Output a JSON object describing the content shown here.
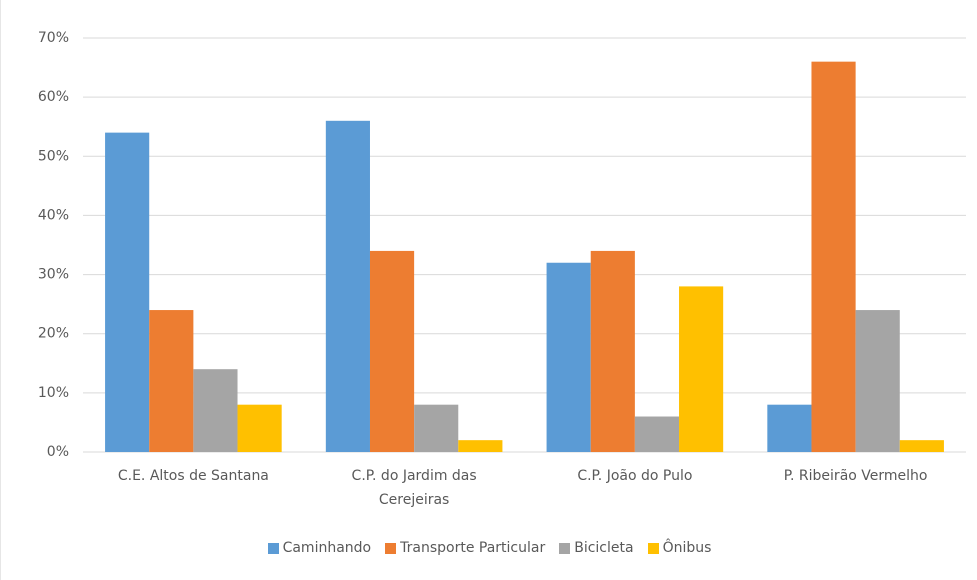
{
  "chart_data": {
    "type": "bar",
    "categories": [
      "C.E. Altos de Santana",
      "C.P. do Jardim das Cerejeiras",
      "C.P. João do Pulo",
      "P. Ribeirão Vermelho"
    ],
    "series": [
      {
        "name": "Caminhando",
        "color": "#5b9bd5",
        "values": [
          54,
          56,
          32,
          8
        ]
      },
      {
        "name": "Transporte Particular",
        "color": "#ed7d31",
        "values": [
          24,
          34,
          34,
          66
        ]
      },
      {
        "name": "Bicicleta",
        "color": "#a5a5a5",
        "values": [
          14,
          8,
          6,
          24
        ]
      },
      {
        "name": "Ônibus",
        "color": "#ffc000",
        "values": [
          8,
          2,
          28,
          2
        ]
      }
    ],
    "ylim": [
      0,
      70
    ],
    "yticks": [
      {
        "value": 0,
        "label": "0%"
      },
      {
        "value": 10,
        "label": "10%"
      },
      {
        "value": 20,
        "label": "20%"
      },
      {
        "value": 30,
        "label": "30%"
      },
      {
        "value": 40,
        "label": "40%"
      },
      {
        "value": 50,
        "label": "50%"
      },
      {
        "value": 60,
        "label": "60%"
      },
      {
        "value": 70,
        "label": "70%"
      }
    ],
    "grid": true,
    "legend": "bottom"
  }
}
